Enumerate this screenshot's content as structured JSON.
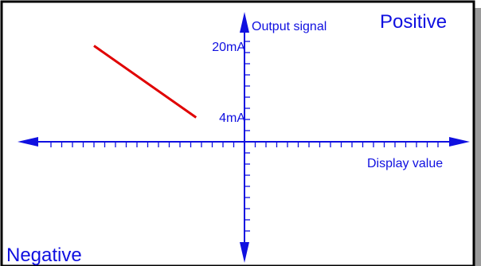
{
  "chart_data": {
    "type": "line",
    "title": "",
    "xlabel": "Display value",
    "ylabel": "Output signal",
    "y_tick_labels": [
      "20mA",
      "4mA"
    ],
    "quadrant_labels": {
      "top_right": "Positive",
      "bottom_left": "Negative"
    },
    "grid": false,
    "series": [
      {
        "values": [
          {
            "x": -14,
            "y": 20
          },
          {
            "x": -4.5,
            "y": 4
          }
        ]
      }
    ],
    "colors": {
      "axis": "#1010e0",
      "line": "#e00000",
      "frame": "#000000",
      "shadow": "#9a9a9a"
    }
  }
}
